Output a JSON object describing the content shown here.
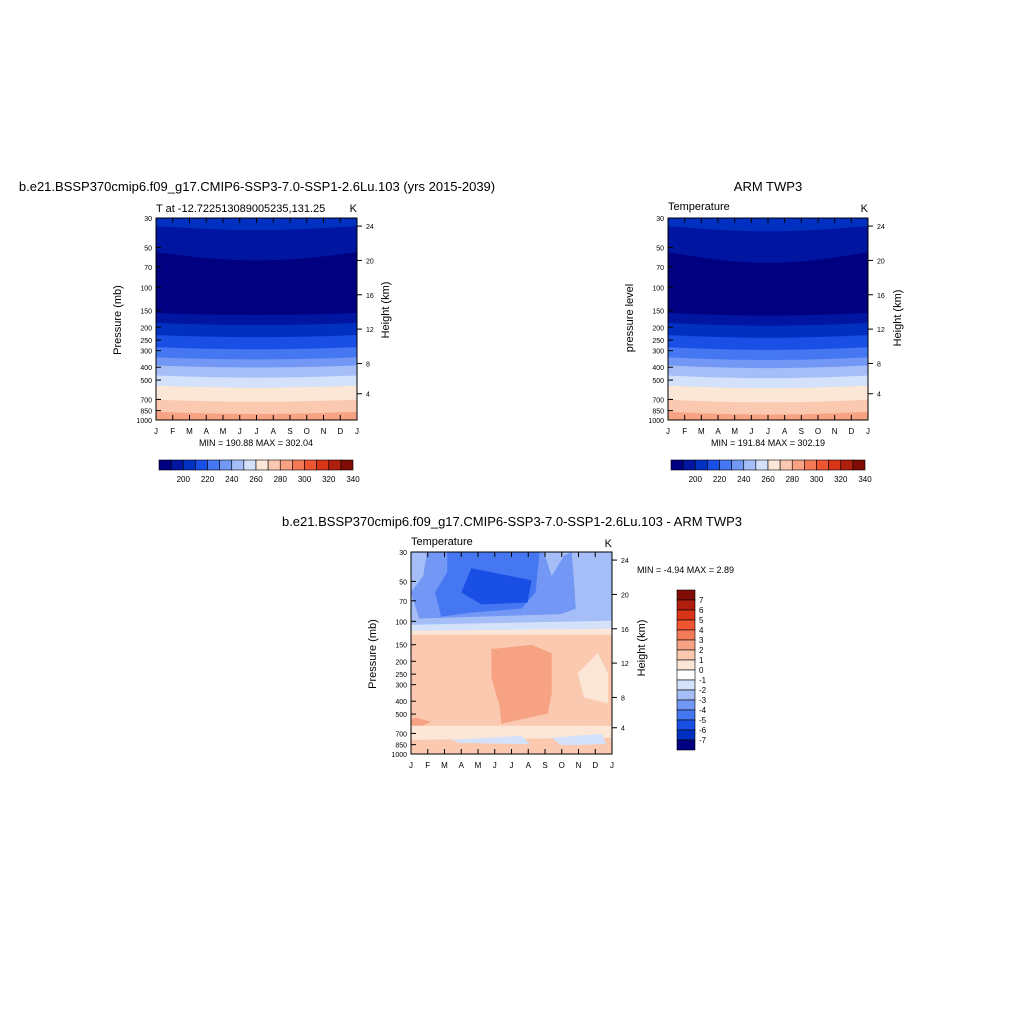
{
  "colors": {
    "temp_levels": [
      "#000080",
      "#0015a0",
      "#0030c0",
      "#1a4fe6",
      "#4677f2",
      "#7297f5",
      "#a5bef7",
      "#d3e2fa",
      "#fce6d6",
      "#fbc8b0",
      "#f7a283",
      "#f47a57",
      "#ee5530",
      "#d83418",
      "#b01e0d",
      "#7f0c05"
    ],
    "diff_levels": [
      "#000080",
      "#0015a0",
      "#0030c0",
      "#1a4fe6",
      "#4677f2",
      "#7297f5",
      "#a5bef7",
      "#d3e2fa",
      "#ffffff",
      "#fce6d6",
      "#fbc8b0",
      "#f7a283",
      "#f47a57",
      "#ee5530",
      "#d83418",
      "#b01e0d",
      "#7f0c05"
    ]
  },
  "chart_data": [
    {
      "type": "heatmap",
      "title": "b.e21.BSSP370cmip6.f09_g17.CMIP6-SSP3-7.0-SSP1-2.6Lu.103 (yrs 2015-2039)",
      "subtitle_left": "T at -12.722513089005235,131.25",
      "subtitle_right": "K",
      "ylabel": "Pressure (mb)",
      "ylabel_right": "Height (km)",
      "x_ticks": [
        "J",
        "F",
        "M",
        "A",
        "M",
        "J",
        "J",
        "A",
        "S",
        "O",
        "N",
        "D",
        "J"
      ],
      "y_ticks": [
        "30",
        "50",
        "70",
        "100",
        "150",
        "200",
        "250",
        "300",
        "400",
        "500",
        "700",
        "850",
        "1000"
      ],
      "y_ticks_right": [
        "24",
        "20",
        "16",
        "12",
        "8",
        "4"
      ],
      "stats": "MIN = 190.88 MAX = 302.04",
      "colorbar_labels": [
        "200",
        "220",
        "240",
        "260",
        "280",
        "300",
        "320",
        "340"
      ]
    },
    {
      "type": "heatmap",
      "title": "ARM TWP3",
      "subtitle_left": "Temperature",
      "subtitle_right": "K",
      "ylabel": "pressure level",
      "ylabel_right": "Height (km)",
      "x_ticks": [
        "J",
        "F",
        "M",
        "A",
        "M",
        "J",
        "J",
        "A",
        "S",
        "O",
        "N",
        "D",
        "J"
      ],
      "y_ticks": [
        "30",
        "50",
        "70",
        "100",
        "150",
        "200",
        "250",
        "300",
        "400",
        "500",
        "700",
        "850",
        "1000"
      ],
      "y_ticks_right": [
        "24",
        "20",
        "16",
        "12",
        "8",
        "4"
      ],
      "stats": "MIN = 191.84 MAX = 302.19",
      "colorbar_labels": [
        "200",
        "220",
        "240",
        "260",
        "280",
        "300",
        "320",
        "340"
      ]
    },
    {
      "type": "heatmap",
      "title": "b.e21.BSSP370cmip6.f09_g17.CMIP6-SSP3-7.0-SSP1-2.6Lu.103 - ARM TWP3",
      "subtitle_left": "Temperature",
      "subtitle_right": "K",
      "ylabel": "Pressure (mb)",
      "ylabel_right": "Height (km)",
      "x_ticks": [
        "J",
        "F",
        "M",
        "A",
        "M",
        "J",
        "J",
        "A",
        "S",
        "O",
        "N",
        "D",
        "J"
      ],
      "y_ticks": [
        "30",
        "50",
        "70",
        "100",
        "150",
        "200",
        "250",
        "300",
        "400",
        "500",
        "700",
        "850",
        "1000"
      ],
      "y_ticks_right": [
        "24",
        "20",
        "16",
        "12",
        "8",
        "4"
      ],
      "stats": "MIN =  -4.94 MAX =   2.89",
      "colorbar_labels": [
        "7",
        "6",
        "5",
        "4",
        "3",
        "2",
        "1",
        "0",
        "-1",
        "-2",
        "-3",
        "-4",
        "-5",
        "-6",
        "-7"
      ]
    }
  ]
}
